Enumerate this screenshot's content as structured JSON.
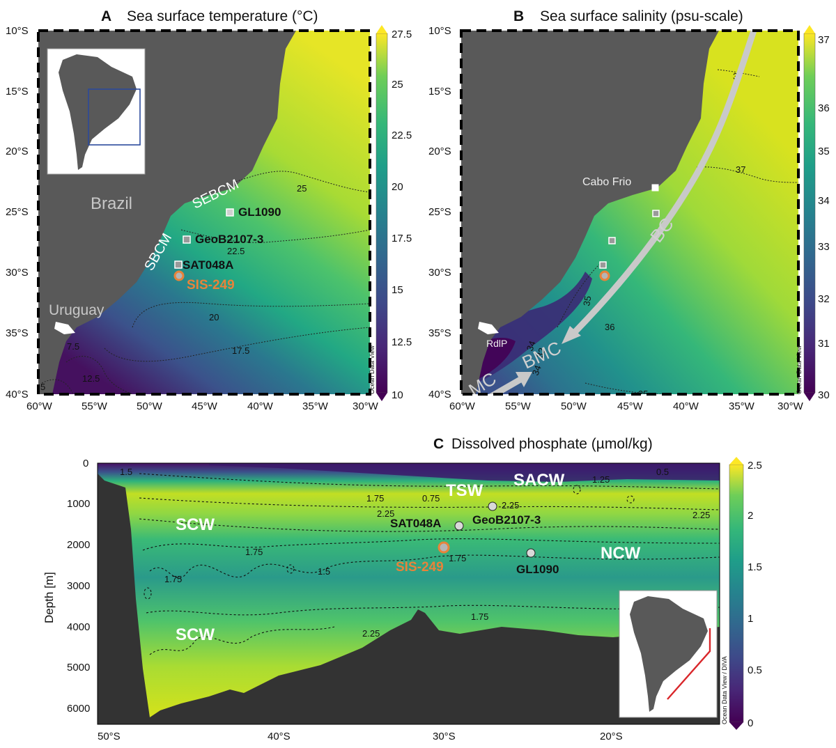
{
  "panelA": {
    "letter": "A",
    "title": "Sea surface temperature (°C)",
    "lat_ticks": [
      "10°S",
      "15°S",
      "20°S",
      "25°S",
      "30°S",
      "35°S",
      "40°S"
    ],
    "lon_ticks": [
      "60°W",
      "55°W",
      "50°W",
      "45°W",
      "40°W",
      "35°W",
      "30°W"
    ],
    "colorbar_ticks": [
      "27.5",
      "25",
      "22.5",
      "20",
      "17.5",
      "15",
      "12.5",
      "10"
    ],
    "watermark": "Ocean Data View",
    "contours": [
      "25",
      "22.5",
      "20",
      "17.5",
      "12.5",
      "7.5",
      "5"
    ],
    "regions": [
      "Brazil",
      "Uruguay"
    ],
    "currents": [
      "SEBCM",
      "SBCM"
    ],
    "stations": [
      "GL1090",
      "GeoB2107-3",
      "SAT048A"
    ],
    "core": "SIS-249"
  },
  "panelB": {
    "letter": "B",
    "title": "Sea surface salinity (psu-scale)",
    "lat_ticks": [
      "10°S",
      "15°S",
      "20°S",
      "25°S",
      "30°S",
      "35°S",
      "40°S"
    ],
    "lon_ticks": [
      "60°W",
      "55°W",
      "50°W",
      "45°W",
      "40°W",
      "35°W",
      "30°W"
    ],
    "colorbar_ticks": [
      "37",
      "36",
      "35",
      "34",
      "33",
      "32",
      "31",
      "30"
    ],
    "watermark": "Ocean Data View",
    "contours": [
      "37",
      "37",
      "35",
      "36",
      "35",
      "34",
      "32",
      "34"
    ],
    "places": [
      "Cabo Frio",
      "RdlP"
    ],
    "currents": [
      "BC",
      "BMC",
      "MC"
    ]
  },
  "panelC": {
    "letter": "C",
    "title": "Dissolved phosphate (µmol/kg)",
    "ylabel": "Depth [m]",
    "depth_ticks": [
      "0",
      "1000",
      "2000",
      "3000",
      "4000",
      "5000",
      "6000"
    ],
    "lat_ticks": [
      "50°S",
      "40°S",
      "30°S",
      "20°S"
    ],
    "colorbar_ticks": [
      "2.5",
      "2",
      "1.5",
      "1",
      "0.5",
      "0"
    ],
    "watermark": "Ocean Data View / DIVA",
    "contours": [
      "1.5",
      "1.75",
      "0.75",
      "1.25",
      "0.5",
      "2.25",
      "2.25",
      "2.25",
      "1.75",
      "1.75",
      "1.75",
      "1.5",
      "2.25",
      "1.75"
    ],
    "water_masses": [
      "TSW",
      "SACW",
      "SCW",
      "SCW",
      "NCW"
    ],
    "stations": [
      "GeoB2107-3",
      "SAT048A",
      "GL1090"
    ],
    "core": "SIS-249"
  },
  "colors": {
    "land": "#595959",
    "core_marker": "#e8833a",
    "section_line": "#d9262a"
  }
}
